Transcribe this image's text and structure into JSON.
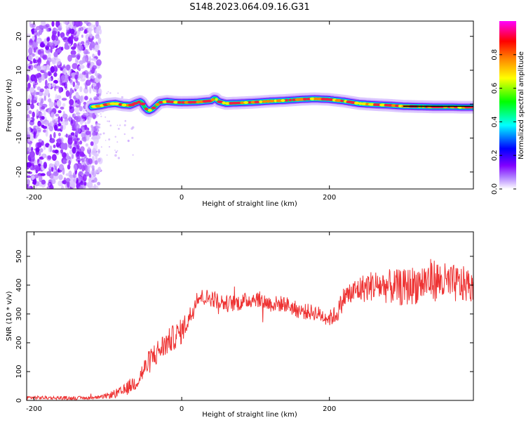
{
  "title": "S148.2023.064.09.16.G31",
  "chart_data": [
    {
      "type": "heatmap",
      "xlabel": "Height of straight line (km)",
      "ylabel": "Frequency (Hz)",
      "xlim": [
        -210,
        395
      ],
      "ylim": [
        -25,
        24.5
      ],
      "xticks": [
        -200,
        0,
        200
      ],
      "yticks": [
        -20,
        -10,
        0,
        10,
        20
      ],
      "colorbar": {
        "label": "Normalized spectral amplitude",
        "range": [
          0,
          1
        ],
        "ticks": [
          "0.0",
          "0.2",
          "0.4",
          "0.6",
          "0.8"
        ],
        "colors": [
          "#ffffff",
          "#8000ff",
          "#0000ff",
          "#00ffff",
          "#00ff00",
          "#ffff00",
          "#ff8000",
          "#ff0000",
          "#ff00ff"
        ]
      },
      "noise_region": {
        "x_range": [
          -210,
          -110
        ],
        "y_range": [
          -25,
          24.5
        ]
      },
      "ridge": {
        "x": [
          -122,
          -110,
          -100,
          -90,
          -80,
          -70,
          -60,
          -55,
          -50,
          -45,
          -40,
          -30,
          -20,
          -10,
          0,
          20,
          40,
          45,
          50,
          60,
          80,
          100,
          120,
          140,
          160,
          180,
          200,
          220,
          240,
          260,
          280,
          300,
          320,
          340,
          360,
          380,
          395
        ],
        "y": [
          -0.8,
          -0.5,
          0,
          0.2,
          -0.2,
          -0.4,
          0.5,
          0.8,
          -1.0,
          -2.0,
          -1.5,
          0.5,
          0.8,
          0.6,
          0.5,
          0.6,
          1.0,
          1.8,
          0.8,
          0.2,
          0.4,
          0.6,
          0.9,
          1.1,
          1.4,
          1.6,
          1.4,
          0.9,
          0.2,
          -0.1,
          -0.3,
          -0.6,
          -0.7,
          -0.8,
          -0.8,
          -0.9,
          -0.9
        ]
      }
    },
    {
      "type": "line",
      "xlabel": "Height of straight line (km)",
      "ylabel": "SNR (10 * v/v)",
      "xlim": [
        -210,
        395
      ],
      "ylim": [
        0,
        585
      ],
      "xticks": [
        -200,
        0,
        200
      ],
      "yticks": [
        0,
        100,
        200,
        300,
        400,
        500
      ],
      "series": [
        {
          "color": "#ee3333",
          "anchors_x": [
            -210,
            -150,
            -110,
            -80,
            -60,
            -40,
            -20,
            0,
            15,
            20,
            40,
            60,
            80,
            100,
            120,
            140,
            160,
            180,
            200,
            210,
            220,
            240,
            260,
            300,
            340,
            360,
            395
          ],
          "anchors_y": [
            10,
            8,
            10,
            30,
            70,
            150,
            200,
            240,
            310,
            360,
            355,
            335,
            340,
            355,
            335,
            335,
            310,
            305,
            285,
            300,
            360,
            385,
            400,
            390,
            420,
            405,
            400
          ],
          "noise": [
            [
              -210,
              6
            ],
            [
              -110,
              6
            ],
            [
              -80,
              20
            ],
            [
              -40,
              45
            ],
            [
              0,
              45
            ],
            [
              20,
              30
            ],
            [
              200,
              28
            ],
            [
              220,
              40
            ],
            [
              260,
              55
            ],
            [
              340,
              75
            ],
            [
              395,
              60
            ]
          ]
        }
      ]
    }
  ]
}
